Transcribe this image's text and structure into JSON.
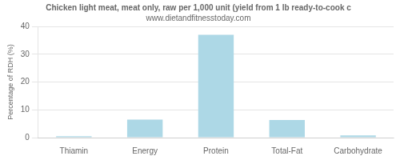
{
  "chart_data": {
    "type": "bar",
    "title": "Chicken light meat, meat only, raw per 1,000 unit (yield from 1 lb ready-to-cook c",
    "subtitle": "www.dietandfitnesstoday.com",
    "categories": [
      "Thiamin",
      "Energy",
      "Protein",
      "Total-Fat",
      "Carbohydrate"
    ],
    "values": [
      0.5,
      6.5,
      37.0,
      6.3,
      0.8
    ],
    "color": "#add8e6",
    "ylabel": "Percentage of RDH (%)",
    "ylim": [
      0,
      40
    ],
    "yticks": [
      0,
      10,
      20,
      30,
      40
    ],
    "grid": true
  }
}
